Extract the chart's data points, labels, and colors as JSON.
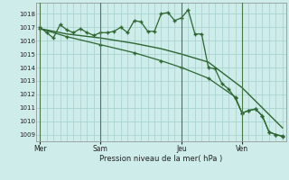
{
  "background_color": "#cdecea",
  "grid_color": "#aad4d0",
  "line_color": "#2d6630",
  "ylim": [
    1008.5,
    1018.8
  ],
  "yticks": [
    1009,
    1010,
    1011,
    1012,
    1013,
    1014,
    1015,
    1016,
    1017,
    1018
  ],
  "xlabel": "Pression niveau de la mer( hPa )",
  "day_labels": [
    "Mer",
    "Sam",
    "Jeu",
    "Ven"
  ],
  "day_positions": [
    0,
    9,
    21,
    30
  ],
  "xlim": [
    -0.5,
    36.5
  ],
  "num_x_gridlines": 37,
  "series1_x": [
    0,
    1,
    2,
    3,
    4,
    5,
    6,
    7,
    8,
    9,
    10,
    11,
    12,
    13,
    14,
    15,
    16,
    17,
    18,
    19,
    20,
    21,
    22,
    23,
    24,
    25,
    26,
    27,
    28,
    29,
    30,
    31,
    32,
    33,
    34,
    35,
    36
  ],
  "series1_y": [
    1017.0,
    1016.6,
    1016.2,
    1017.2,
    1016.8,
    1016.6,
    1016.9,
    1016.6,
    1016.4,
    1016.6,
    1016.6,
    1016.7,
    1017.0,
    1016.6,
    1017.5,
    1017.4,
    1016.7,
    1016.7,
    1018.0,
    1018.1,
    1017.5,
    1017.7,
    1018.3,
    1016.5,
    1016.5,
    1014.0,
    1013.9,
    1012.8,
    1012.4,
    1011.7,
    1010.6,
    1010.8,
    1010.9,
    1010.4,
    1009.2,
    1009.0,
    1008.9
  ],
  "series2_x": [
    0,
    4,
    9,
    14,
    18,
    21,
    25,
    30,
    33,
    36
  ],
  "series2_y": [
    1016.9,
    1016.5,
    1016.2,
    1015.8,
    1015.4,
    1015.0,
    1014.4,
    1012.5,
    1011.0,
    1009.5
  ],
  "series3_x": [
    0,
    4,
    9,
    14,
    18,
    21,
    25,
    29,
    30,
    31,
    32,
    33,
    34,
    35,
    36
  ],
  "series3_y": [
    1016.9,
    1016.3,
    1015.7,
    1015.1,
    1014.5,
    1014.0,
    1013.2,
    1011.8,
    1010.6,
    1010.8,
    1010.9,
    1010.4,
    1009.2,
    1009.0,
    1008.85
  ]
}
